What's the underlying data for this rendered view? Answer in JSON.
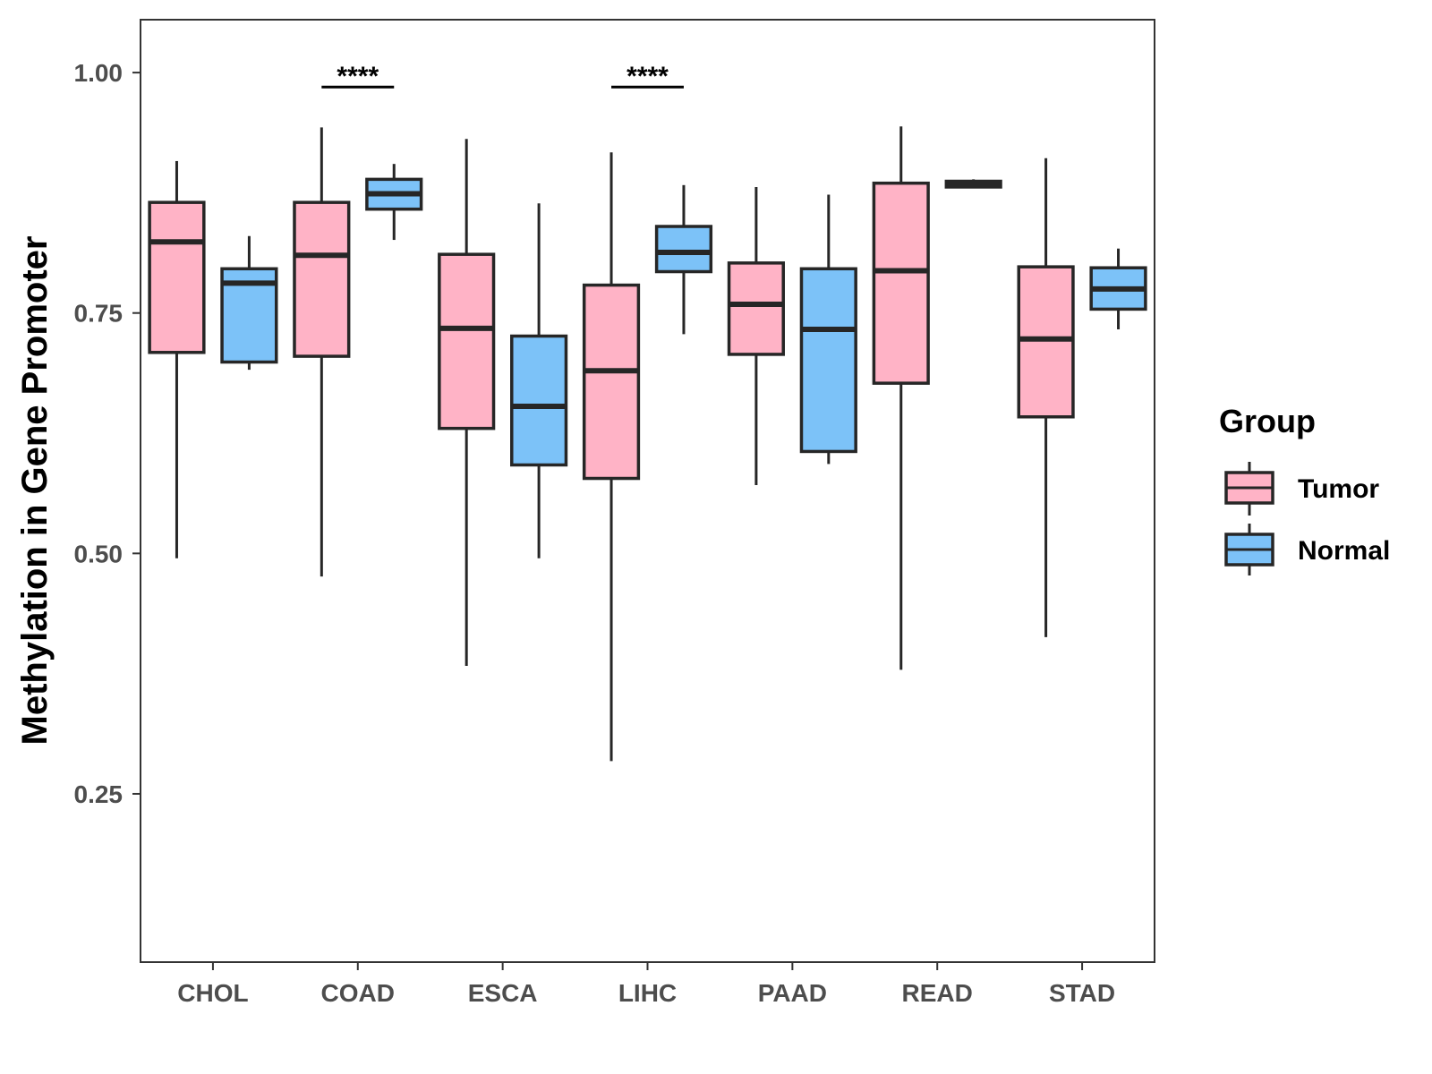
{
  "chart_data": {
    "type": "boxplot",
    "title": "",
    "xlabel": "",
    "ylabel": "Methylation in Gene Promoter",
    "ylim": [
      0.075,
      1.055
    ],
    "yticks": [
      0.25,
      0.5,
      0.75,
      1.0
    ],
    "ytick_labels": [
      "0.25",
      "0.50",
      "0.75",
      "1.00"
    ],
    "categories": [
      "CHOL",
      "COAD",
      "ESCA",
      "LIHC",
      "PAAD",
      "READ",
      "STAD"
    ],
    "grid": false,
    "legend": {
      "title": "Group",
      "position": "right",
      "entries": [
        {
          "name": "Tumor",
          "color": "#ffb3c6"
        },
        {
          "name": "Normal",
          "color": "#7cc2f8"
        }
      ]
    },
    "series": [
      {
        "name": "Tumor",
        "color": "#ffb3c6",
        "boxes": [
          {
            "category": "CHOL",
            "min": 0.495,
            "q1": 0.709,
            "median": 0.824,
            "q3": 0.865,
            "max": 0.908
          },
          {
            "category": "COAD",
            "min": 0.476,
            "q1": 0.705,
            "median": 0.81,
            "q3": 0.865,
            "max": 0.943
          },
          {
            "category": "ESCA",
            "min": 0.383,
            "q1": 0.63,
            "median": 0.734,
            "q3": 0.811,
            "max": 0.931
          },
          {
            "category": "LIHC",
            "min": 0.284,
            "q1": 0.578,
            "median": 0.69,
            "q3": 0.779,
            "max": 0.917
          },
          {
            "category": "PAAD",
            "min": 0.571,
            "q1": 0.707,
            "median": 0.759,
            "q3": 0.802,
            "max": 0.881
          },
          {
            "category": "READ",
            "min": 0.379,
            "q1": 0.677,
            "median": 0.794,
            "q3": 0.885,
            "max": 0.944
          },
          {
            "category": "STAD",
            "min": 0.413,
            "q1": 0.642,
            "median": 0.723,
            "q3": 0.798,
            "max": 0.911
          }
        ]
      },
      {
        "name": "Normal",
        "color": "#7cc2f8",
        "boxes": [
          {
            "category": "CHOL",
            "min": 0.691,
            "q1": 0.699,
            "median": 0.781,
            "q3": 0.796,
            "max": 0.83
          },
          {
            "category": "COAD",
            "min": 0.826,
            "q1": 0.858,
            "median": 0.874,
            "q3": 0.889,
            "max": 0.905
          },
          {
            "category": "ESCA",
            "min": 0.495,
            "q1": 0.592,
            "median": 0.653,
            "q3": 0.726,
            "max": 0.864
          },
          {
            "category": "LIHC",
            "min": 0.728,
            "q1": 0.793,
            "median": 0.813,
            "q3": 0.84,
            "max": 0.883
          },
          {
            "category": "PAAD",
            "min": 0.593,
            "q1": 0.606,
            "median": 0.733,
            "q3": 0.796,
            "max": 0.873
          },
          {
            "category": "READ",
            "min": 0.881,
            "q1": 0.881,
            "median": 0.883,
            "q3": 0.887,
            "max": 0.889
          },
          {
            "category": "STAD",
            "min": 0.733,
            "q1": 0.754,
            "median": 0.775,
            "q3": 0.797,
            "max": 0.817
          }
        ]
      }
    ],
    "annotations": [
      {
        "category": "COAD",
        "text": "****",
        "y": 0.985
      },
      {
        "category": "LIHC",
        "text": "****",
        "y": 0.985
      }
    ]
  }
}
